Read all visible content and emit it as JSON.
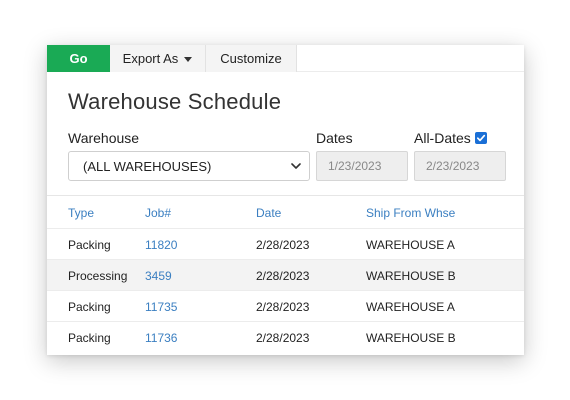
{
  "toolbar": {
    "go_label": "Go",
    "export_label": "Export As",
    "customize_label": "Customize"
  },
  "page": {
    "title": "Warehouse Schedule"
  },
  "filters": {
    "warehouse_label": "Warehouse",
    "warehouse_value": "(ALL WAREHOUSES)",
    "dates_label": "Dates",
    "date_from": "1/23/2023",
    "date_to": "2/23/2023",
    "all_dates_label": "All-Dates",
    "all_dates_checked": true
  },
  "table": {
    "columns": [
      "Type",
      "Job#",
      "Date",
      "Ship From Whse"
    ],
    "rows": [
      [
        "Packing",
        "11820",
        "2/28/2023",
        "WAREHOUSE A"
      ],
      [
        "Processing",
        "3459",
        "2/28/2023",
        "WAREHOUSE B"
      ],
      [
        "Packing",
        "11735",
        "2/28/2023",
        "WAREHOUSE A"
      ],
      [
        "Packing",
        "11736",
        "2/28/2023",
        "WAREHOUSE B"
      ]
    ]
  },
  "colors": {
    "go": "#1aaa55",
    "link": "#3b7fc1",
    "checkbox": "#1a6fd6"
  }
}
